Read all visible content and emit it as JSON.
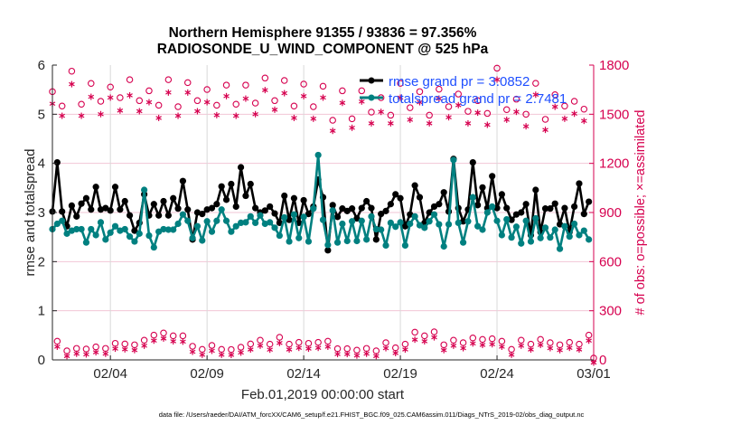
{
  "chart_data": {
    "type": "line",
    "title": [
      "Northern Hemisphere 91355 / 93836 = 97.356%",
      "RADIOSONDE_U_WIND_COMPONENT @ 525 hPa"
    ],
    "xlabel": "Feb.01,2019 00:00:00 start",
    "ylabel": "rmse and totalspread",
    "ylabel_right": "# of obs: o=possible; ×=assimilated",
    "footer": "data file: /Users/raeder/DAI/ATM_forcXX/CAM6_setup/f.e21.FHIST_BGC.f09_025.CAM6assim.011/Diags_NTrS_2019-02/obs_diag_output.nc",
    "ylim": [
      0,
      6
    ],
    "ylim_right": [
      0,
      1800
    ],
    "yticks": [
      "0",
      "1",
      "2",
      "3",
      "4",
      "5",
      "6"
    ],
    "yticks_right": [
      "0",
      "300",
      "600",
      "900",
      "1200",
      "1500",
      "1800"
    ],
    "xticks": [
      {
        "label": "02/04",
        "date": "02/04 00:00"
      },
      {
        "label": "02/09",
        "date": "02/09 00:00"
      },
      {
        "label": "02/14",
        "date": "02/14 00:00"
      },
      {
        "label": "02/19",
        "date": "02/19 00:00"
      },
      {
        "label": "02/24",
        "date": "02/24 00:00"
      },
      {
        "label": "03/01",
        "date": "03/01 00:00"
      }
    ],
    "xlim": [
      "02/01 00:00",
      "03/01 00:00"
    ],
    "grid": true,
    "legend_placement": "top-right",
    "colors": {
      "rmse": "#000000",
      "totalspread": "#008080",
      "obs": "#d6004f",
      "legend_text": "#1f4fff"
    },
    "x": [
      "02/01 00:00",
      "02/01 06:00",
      "02/01 12:00",
      "02/01 18:00",
      "02/02 00:00",
      "02/02 06:00",
      "02/02 12:00",
      "02/02 18:00",
      "02/03 00:00",
      "02/03 06:00",
      "02/03 12:00",
      "02/03 18:00",
      "02/04 00:00",
      "02/04 06:00",
      "02/04 12:00",
      "02/04 18:00",
      "02/05 00:00",
      "02/05 06:00",
      "02/05 12:00",
      "02/05 18:00",
      "02/06 00:00",
      "02/06 06:00",
      "02/06 12:00",
      "02/06 18:00",
      "02/07 00:00",
      "02/07 06:00",
      "02/07 12:00",
      "02/07 18:00",
      "02/08 00:00",
      "02/08 06:00",
      "02/08 12:00",
      "02/08 18:00",
      "02/09 00:00",
      "02/09 06:00",
      "02/09 12:00",
      "02/09 18:00",
      "02/10 00:00",
      "02/10 06:00",
      "02/10 12:00",
      "02/10 18:00",
      "02/11 00:00",
      "02/11 06:00",
      "02/11 12:00",
      "02/11 18:00",
      "02/12 00:00",
      "02/12 06:00",
      "02/12 12:00",
      "02/12 18:00",
      "02/13 00:00",
      "02/13 06:00",
      "02/13 12:00",
      "02/13 18:00",
      "02/14 00:00",
      "02/14 06:00",
      "02/14 12:00",
      "02/14 18:00",
      "02/15 00:00",
      "02/15 06:00",
      "02/15 12:00",
      "02/15 18:00",
      "02/16 00:00",
      "02/16 06:00",
      "02/16 12:00",
      "02/16 18:00",
      "02/17 00:00",
      "02/17 06:00",
      "02/17 12:00",
      "02/17 18:00",
      "02/18 00:00",
      "02/18 06:00",
      "02/18 12:00",
      "02/18 18:00",
      "02/19 00:00",
      "02/19 06:00",
      "02/19 12:00",
      "02/19 18:00",
      "02/20 00:00",
      "02/20 06:00",
      "02/20 12:00",
      "02/20 18:00",
      "02/21 00:00",
      "02/21 06:00",
      "02/21 12:00",
      "02/21 18:00",
      "02/22 00:00",
      "02/22 06:00",
      "02/22 12:00",
      "02/22 18:00",
      "02/23 00:00",
      "02/23 06:00",
      "02/23 12:00",
      "02/23 18:00",
      "02/24 00:00",
      "02/24 06:00",
      "02/24 12:00",
      "02/24 18:00",
      "02/25 00:00",
      "02/25 06:00",
      "02/25 12:00",
      "02/25 18:00",
      "02/26 00:00",
      "02/26 06:00",
      "02/26 12:00",
      "02/26 18:00",
      "02/27 00:00",
      "02/27 06:00",
      "02/27 12:00",
      "02/27 18:00",
      "02/28 00:00",
      "02/28 06:00",
      "02/28 12:00",
      "02/28 18:00",
      "03/01 00:00"
    ],
    "series": [
      {
        "name": "rmse grand pr = 3.0852",
        "axis": "left",
        "values": [
          3.02,
          4.02,
          3.02,
          2.72,
          3.14,
          2.92,
          3.18,
          3.29,
          3.06,
          3.52,
          3.06,
          3.09,
          3.04,
          3.52,
          3.06,
          3.23,
          2.94,
          2.63,
          2.79,
          3.37,
          2.94,
          3.17,
          2.94,
          3.23,
          2.94,
          3.29,
          3.08,
          3.64,
          3.06,
          2.45,
          3.0,
          2.97,
          3.06,
          3.09,
          3.17,
          3.53,
          3.26,
          3.58,
          3.12,
          3.92,
          3.34,
          3.58,
          3.09,
          3.0,
          3.04,
          3.12,
          2.98,
          2.79,
          3.34,
          2.85,
          3.29,
          2.79,
          3.25,
          2.97,
          3.12,
          3.67,
          3.31,
          2.23,
          3.15,
          2.91,
          3.08,
          3.03,
          3.08,
          2.88,
          3.09,
          3.23,
          3.09,
          2.45,
          2.97,
          3.03,
          3.17,
          3.37,
          3.29,
          2.72,
          2.96,
          3.55,
          3.31,
          2.79,
          3.0,
          3.12,
          3.17,
          3.41,
          3.02,
          4.09,
          3.09,
          2.82,
          3.06,
          4.02,
          3.15,
          3.51,
          3.09,
          3.74,
          3.09,
          3.37,
          3.09,
          2.85,
          2.96,
          3.0,
          3.17,
          2.54,
          3.46,
          2.6,
          3.08,
          3.08,
          3.18,
          2.76,
          3.09,
          2.6,
          3.12,
          3.59,
          2.97,
          3.22,
          null
        ]
      },
      {
        "name": "totalspread grand pr = 2.7481",
        "axis": "left",
        "values": [
          2.66,
          2.77,
          2.83,
          2.57,
          2.63,
          2.66,
          2.66,
          2.39,
          2.66,
          2.54,
          2.8,
          2.45,
          2.59,
          2.72,
          2.63,
          2.66,
          2.51,
          2.41,
          2.57,
          3.46,
          2.53,
          2.29,
          2.61,
          2.66,
          2.65,
          2.65,
          2.77,
          2.96,
          2.83,
          2.48,
          2.72,
          2.43,
          2.82,
          2.61,
          2.83,
          3.06,
          2.83,
          2.61,
          2.72,
          2.79,
          2.8,
          2.92,
          2.79,
          2.94,
          2.77,
          2.8,
          2.69,
          2.53,
          2.9,
          2.41,
          2.96,
          2.48,
          2.91,
          2.41,
          3.08,
          4.17,
          2.85,
          2.34,
          3.04,
          2.39,
          2.77,
          2.42,
          2.82,
          2.42,
          2.83,
          2.45,
          2.92,
          2.66,
          2.65,
          2.33,
          2.79,
          2.71,
          2.8,
          2.33,
          2.77,
          2.92,
          2.74,
          2.69,
          2.82,
          2.96,
          2.76,
          2.31,
          2.76,
          4.07,
          2.79,
          2.39,
          2.82,
          3.31,
          2.72,
          2.65,
          3.0,
          3.12,
          2.83,
          2.54,
          2.86,
          2.49,
          2.71,
          2.37,
          2.83,
          2.41,
          2.88,
          2.48,
          2.69,
          2.49,
          2.65,
          2.26,
          2.72,
          2.51,
          2.77,
          2.54,
          2.63,
          2.45,
          null
        ]
      },
      {
        "name": "possible",
        "axis": "right",
        "marker": "o",
        "values": [
          1627,
          103,
          1539,
          44,
          1752,
          59,
          1550,
          55,
          1677,
          68,
          1568,
          59,
          1655,
          90,
          1590,
          86,
          1700,
          81,
          1572,
          109,
          1632,
          140,
          1544,
          153,
          1700,
          136,
          1535,
          136,
          1682,
          72,
          1572,
          53,
          1640,
          77,
          1544,
          53,
          1667,
          52,
          1550,
          66,
          1667,
          86,
          1557,
          109,
          1710,
          85,
          1572,
          127,
          1695,
          85,
          1539,
          96,
          1673,
          90,
          1535,
          96,
          1660,
          103,
          1452,
          57,
          1632,
          57,
          1461,
          48,
          1632,
          59,
          1502,
          44,
          1590,
          94,
          1483,
          63,
          1678,
          85,
          1529,
          158,
          1627,
          136,
          1483,
          160,
          1642,
          81,
          1535,
          109,
          1612,
          94,
          1507,
          123,
          1572,
          114,
          1494,
          118,
          1770,
          103,
          1517,
          53,
          1581,
          109,
          1489,
          85,
          1678,
          114,
          1458,
          94,
          1608,
          81,
          1539,
          96,
          1568,
          85,
          1520,
          140,
          0
        ]
      },
      {
        "name": "assimilated",
        "axis": "right",
        "marker": "*",
        "values": [
          1581,
          97,
          1507,
          40,
          1700,
          54,
          1507,
          50,
          1623,
          63,
          1517,
          54,
          1618,
          85,
          1539,
          81,
          1632,
          76,
          1535,
          103,
          1590,
          134,
          1494,
          147,
          1649,
          130,
          1507,
          128,
          1649,
          66,
          1535,
          48,
          1590,
          72,
          1511,
          48,
          1627,
          47,
          1507,
          61,
          1612,
          80,
          1517,
          103,
          1664,
          79,
          1544,
          120,
          1645,
          80,
          1494,
          90,
          1627,
          85,
          1489,
          90,
          1618,
          97,
          1415,
          52,
          1586,
          52,
          1434,
          43,
          1594,
          54,
          1461,
          40,
          1531,
          88,
          1461,
          58,
          1618,
          80,
          1483,
          140,
          1590,
          130,
          1461,
          154,
          1612,
          76,
          1498,
          103,
          1572,
          88,
          1461,
          117,
          1526,
          108,
          1452,
          112,
          1728,
          97,
          1483,
          48,
          1531,
          103,
          1443,
          80,
          1636,
          108,
          1421,
          88,
          1562,
          76,
          1489,
          90,
          1520,
          80,
          1476,
          134,
          0
        ]
      }
    ]
  }
}
